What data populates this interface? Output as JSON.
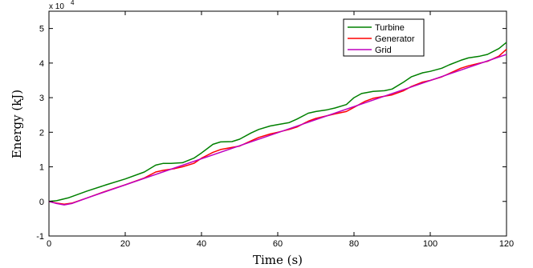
{
  "chart_data": {
    "type": "line",
    "title": "",
    "xlabel": "Time (s)",
    "ylabel": "Energy (kJ)",
    "xlim": [
      0,
      120
    ],
    "ylim": [
      -1,
      5.5
    ],
    "y_exponent_label": "x 10",
    "y_exponent_power": "4",
    "x_ticks": [
      0,
      20,
      40,
      60,
      80,
      100,
      120
    ],
    "y_ticks": [
      -1,
      0,
      1,
      2,
      3,
      4,
      5
    ],
    "grid": false,
    "legend_position": "top-right",
    "series": [
      {
        "name": "Turbine",
        "color": "#008000",
        "points": [
          [
            0,
            0
          ],
          [
            2,
            0.02
          ],
          [
            5,
            0.1
          ],
          [
            10,
            0.3
          ],
          [
            15,
            0.48
          ],
          [
            20,
            0.65
          ],
          [
            25,
            0.85
          ],
          [
            28,
            1.05
          ],
          [
            30,
            1.1
          ],
          [
            32,
            1.1
          ],
          [
            35,
            1.12
          ],
          [
            38,
            1.25
          ],
          [
            40,
            1.4
          ],
          [
            43,
            1.65
          ],
          [
            45,
            1.72
          ],
          [
            48,
            1.73
          ],
          [
            50,
            1.8
          ],
          [
            53,
            1.98
          ],
          [
            55,
            2.08
          ],
          [
            58,
            2.18
          ],
          [
            60,
            2.22
          ],
          [
            63,
            2.28
          ],
          [
            65,
            2.38
          ],
          [
            68,
            2.55
          ],
          [
            70,
            2.6
          ],
          [
            73,
            2.65
          ],
          [
            75,
            2.7
          ],
          [
            78,
            2.8
          ],
          [
            80,
            3.0
          ],
          [
            82,
            3.12
          ],
          [
            85,
            3.18
          ],
          [
            88,
            3.2
          ],
          [
            90,
            3.25
          ],
          [
            93,
            3.45
          ],
          [
            95,
            3.6
          ],
          [
            98,
            3.72
          ],
          [
            100,
            3.76
          ],
          [
            103,
            3.85
          ],
          [
            105,
            3.95
          ],
          [
            108,
            4.08
          ],
          [
            110,
            4.15
          ],
          [
            113,
            4.2
          ],
          [
            115,
            4.25
          ],
          [
            118,
            4.42
          ],
          [
            120,
            4.6
          ]
        ]
      },
      {
        "name": "Generator",
        "color": "#ff0000",
        "points": [
          [
            0,
            0
          ],
          [
            2,
            -0.05
          ],
          [
            4,
            -0.08
          ],
          [
            6,
            -0.05
          ],
          [
            10,
            0.1
          ],
          [
            15,
            0.3
          ],
          [
            20,
            0.48
          ],
          [
            25,
            0.68
          ],
          [
            28,
            0.85
          ],
          [
            30,
            0.9
          ],
          [
            33,
            0.95
          ],
          [
            35,
            1.0
          ],
          [
            38,
            1.1
          ],
          [
            40,
            1.25
          ],
          [
            43,
            1.42
          ],
          [
            45,
            1.5
          ],
          [
            48,
            1.56
          ],
          [
            50,
            1.6
          ],
          [
            53,
            1.75
          ],
          [
            55,
            1.85
          ],
          [
            58,
            1.95
          ],
          [
            60,
            2.0
          ],
          [
            63,
            2.08
          ],
          [
            65,
            2.15
          ],
          [
            68,
            2.32
          ],
          [
            70,
            2.4
          ],
          [
            73,
            2.48
          ],
          [
            75,
            2.53
          ],
          [
            78,
            2.6
          ],
          [
            80,
            2.72
          ],
          [
            83,
            2.9
          ],
          [
            85,
            2.98
          ],
          [
            88,
            3.04
          ],
          [
            90,
            3.08
          ],
          [
            93,
            3.2
          ],
          [
            95,
            3.32
          ],
          [
            98,
            3.45
          ],
          [
            100,
            3.5
          ],
          [
            103,
            3.6
          ],
          [
            105,
            3.7
          ],
          [
            108,
            3.85
          ],
          [
            110,
            3.92
          ],
          [
            113,
            4.0
          ],
          [
            115,
            4.05
          ],
          [
            118,
            4.2
          ],
          [
            120,
            4.4
          ]
        ]
      },
      {
        "name": "Grid",
        "color": "#bf00bf",
        "points": [
          [
            0,
            0
          ],
          [
            2,
            -0.06
          ],
          [
            4,
            -0.1
          ],
          [
            6,
            -0.06
          ],
          [
            10,
            0.1
          ],
          [
            120,
            4.25
          ]
        ]
      }
    ]
  }
}
